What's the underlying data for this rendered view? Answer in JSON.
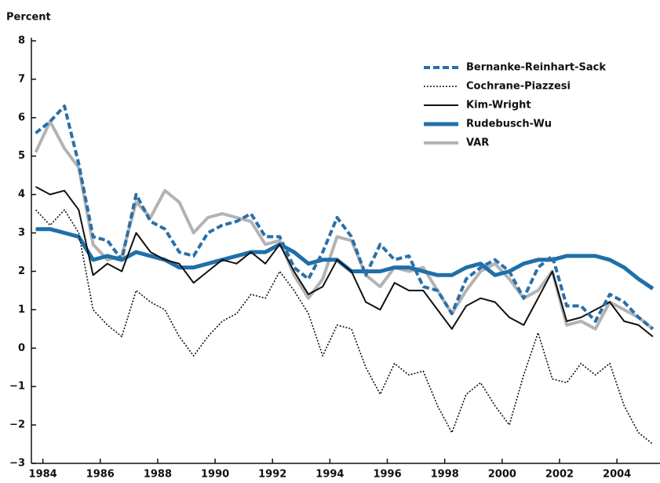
{
  "chart_data": {
    "type": "line",
    "y_label": "Percent",
    "x": [
      1983.75,
      1984.25,
      1984.75,
      1985.25,
      1985.75,
      1986.25,
      1986.75,
      1987.25,
      1987.75,
      1988.25,
      1988.75,
      1989.25,
      1989.75,
      1990.25,
      1990.75,
      1991.25,
      1991.75,
      1992.25,
      1992.75,
      1993.25,
      1993.75,
      1994.25,
      1994.75,
      1995.25,
      1995.75,
      1996.25,
      1996.75,
      1997.25,
      1997.75,
      1998.25,
      1998.75,
      1999.25,
      1999.75,
      2000.25,
      2000.75,
      2001.25,
      2001.75,
      2002.25,
      2002.75,
      2003.25,
      2003.75,
      2004.25,
      2004.75,
      2005.25
    ],
    "series": [
      {
        "name": "Bernanke-Reinhart-Sack",
        "color": "#2a6fa8",
        "style": "dashed",
        "values": [
          5.6,
          5.9,
          6.3,
          4.8,
          2.9,
          2.8,
          2.3,
          4.0,
          3.3,
          3.1,
          2.5,
          2.4,
          3.0,
          3.2,
          3.3,
          3.5,
          2.9,
          2.9,
          2.1,
          1.8,
          2.5,
          3.4,
          2.9,
          1.9,
          2.7,
          2.3,
          2.4,
          1.6,
          1.5,
          0.9,
          1.8,
          2.1,
          2.3,
          2.0,
          1.3,
          2.1,
          2.4,
          1.1,
          1.1,
          0.7,
          1.4,
          1.2,
          0.8,
          0.5
        ]
      },
      {
        "name": "Cochrane-Piazzesi",
        "color": "#111111",
        "style": "dotted",
        "values": [
          3.6,
          3.2,
          3.6,
          3.0,
          1.0,
          0.6,
          0.3,
          1.5,
          1.2,
          1.0,
          0.3,
          -0.2,
          0.3,
          0.7,
          0.9,
          1.4,
          1.3,
          2.0,
          1.5,
          0.9,
          -0.2,
          0.6,
          0.5,
          -0.5,
          -1.2,
          -0.4,
          -0.7,
          -0.6,
          -1.5,
          -2.2,
          -1.2,
          -0.9,
          -1.5,
          -2.0,
          -0.7,
          0.4,
          -0.8,
          -0.9,
          -0.4,
          -0.7,
          -0.4,
          -1.5,
          -2.2,
          -2.5
        ]
      },
      {
        "name": "Kim-Wright",
        "color": "#111111",
        "style": "solid",
        "values": [
          4.2,
          4.0,
          4.1,
          3.6,
          1.9,
          2.2,
          2.0,
          3.0,
          2.5,
          2.3,
          2.2,
          1.7,
          2.0,
          2.3,
          2.2,
          2.5,
          2.2,
          2.7,
          2.0,
          1.4,
          1.6,
          2.3,
          2.0,
          1.2,
          1.0,
          1.7,
          1.5,
          1.5,
          1.0,
          0.5,
          1.1,
          1.3,
          1.2,
          0.8,
          0.6,
          1.3,
          2.0,
          0.7,
          0.8,
          1.0,
          1.2,
          0.7,
          0.6,
          0.3
        ]
      },
      {
        "name": "Rudebusch-Wu",
        "color": "#1f6fa8",
        "style": "solid",
        "values": [
          3.1,
          3.1,
          3.0,
          2.9,
          2.3,
          2.4,
          2.3,
          2.5,
          2.4,
          2.3,
          2.1,
          2.1,
          2.2,
          2.3,
          2.4,
          2.5,
          2.5,
          2.7,
          2.5,
          2.2,
          2.3,
          2.3,
          2.0,
          2.0,
          2.0,
          2.1,
          2.1,
          2.0,
          1.9,
          1.9,
          2.1,
          2.2,
          1.9,
          2.0,
          2.2,
          2.3,
          2.3,
          2.4,
          2.4,
          2.4,
          2.3,
          2.1,
          1.8,
          1.55
        ]
      },
      {
        "name": "VAR",
        "color": "#b3b3b3",
        "style": "solid",
        "values": [
          5.1,
          5.9,
          5.2,
          4.7,
          2.7,
          2.3,
          2.4,
          3.8,
          3.4,
          4.1,
          3.8,
          3.0,
          3.4,
          3.5,
          3.4,
          3.3,
          2.7,
          2.8,
          1.9,
          1.3,
          1.8,
          2.9,
          2.8,
          1.9,
          1.6,
          2.1,
          2.0,
          2.1,
          1.5,
          0.9,
          1.5,
          2.0,
          2.2,
          1.8,
          1.3,
          1.5,
          2.0,
          0.6,
          0.7,
          0.5,
          1.2,
          1.0,
          0.8,
          0.5
        ]
      }
    ],
    "xlim": [
      1983.6,
      2005.5
    ],
    "xticks": [
      1984,
      1986,
      1988,
      1990,
      1992,
      1994,
      1996,
      1998,
      2000,
      2002,
      2004
    ],
    "ylim": [
      -3,
      8
    ],
    "yticks": [
      {
        "value": -3,
        "label": "−3"
      },
      {
        "value": -2,
        "label": "−2"
      },
      {
        "value": -1,
        "label": "−1"
      },
      0,
      1,
      2,
      3,
      4,
      5,
      6,
      7,
      8
    ],
    "legend": "upper right"
  }
}
